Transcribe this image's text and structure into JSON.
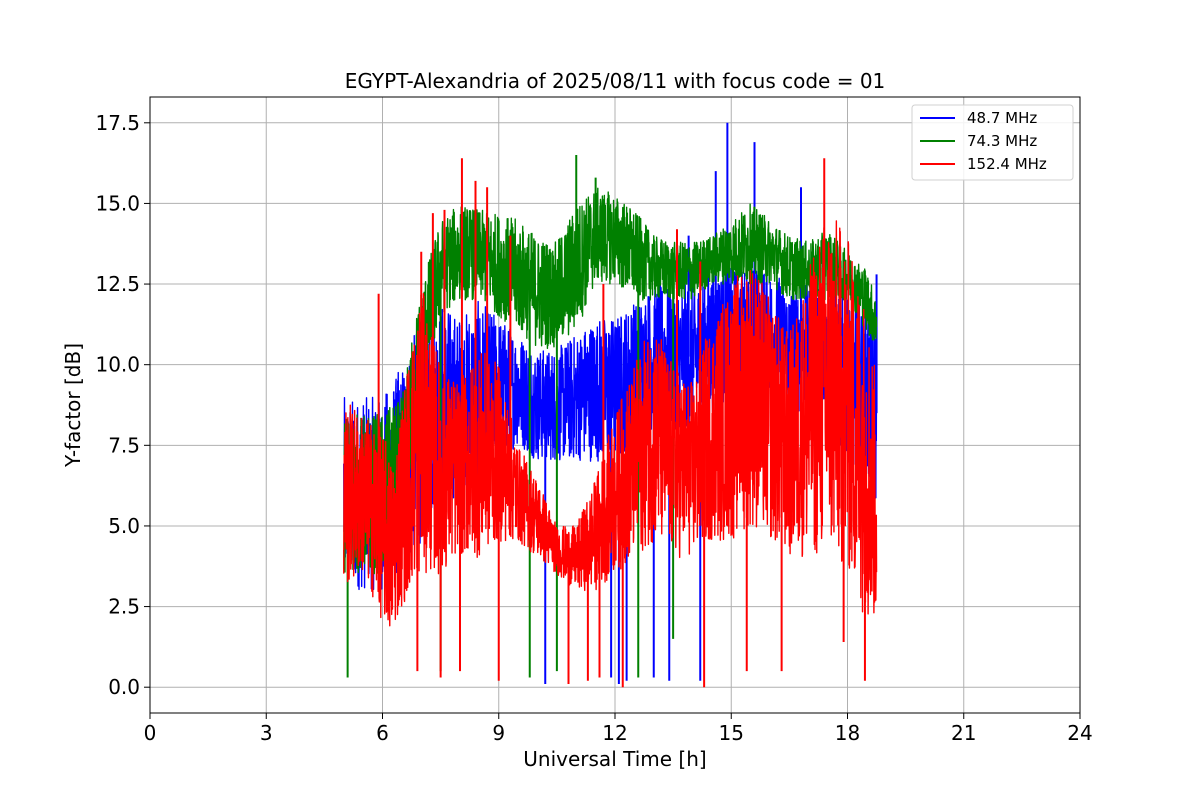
{
  "chart_data": {
    "type": "line",
    "title": "EGYPT-Alexandria of 2025/08/11 with focus code = 01",
    "xlabel": "Universal Time [h]",
    "ylabel": "Y-factor [dB]",
    "xlim": [
      0,
      24
    ],
    "ylim": [
      -0.8,
      18.3
    ],
    "xticks": [
      0,
      3,
      6,
      9,
      12,
      15,
      18,
      21,
      24
    ],
    "xtick_labels": [
      "0",
      "3",
      "6",
      "9",
      "12",
      "15",
      "18",
      "21",
      "24"
    ],
    "yticks": [
      0.0,
      2.5,
      5.0,
      7.5,
      10.0,
      12.5,
      15.0,
      17.5
    ],
    "ytick_labels": [
      "0.0",
      "2.5",
      "5.0",
      "7.5",
      "10.0",
      "12.5",
      "15.0",
      "17.5"
    ],
    "grid": true,
    "legend_position": "top-right",
    "series": [
      {
        "name": "  48.7 MHz",
        "color": "#0000ff",
        "x": [
          5.0,
          5.5,
          6.0,
          6.5,
          7.0,
          7.5,
          8.0,
          8.5,
          9.0,
          9.5,
          10.0,
          10.5,
          11.0,
          11.5,
          12.0,
          12.5,
          13.0,
          13.5,
          14.0,
          14.5,
          15.0,
          15.5,
          16.0,
          16.5,
          17.0,
          17.5,
          18.0,
          18.5,
          18.75
        ],
        "low": [
          3.0,
          3.0,
          3.0,
          3.5,
          4.5,
          5.5,
          6.0,
          6.5,
          7.0,
          7.5,
          7.0,
          7.0,
          7.0,
          7.0,
          7.0,
          7.5,
          8.0,
          8.0,
          8.0,
          8.5,
          9.0,
          9.5,
          9.0,
          8.5,
          8.5,
          8.0,
          7.0,
          6.0,
          5.5
        ],
        "high": [
          9.0,
          9.0,
          9.0,
          10.0,
          11.5,
          12.0,
          11.5,
          12.0,
          11.5,
          11.0,
          10.5,
          10.5,
          11.0,
          11.5,
          11.5,
          12.0,
          12.5,
          12.5,
          12.5,
          13.0,
          13.0,
          13.0,
          13.0,
          12.5,
          12.5,
          12.5,
          12.0,
          12.0,
          11.5
        ],
        "spikes": [
          [
            14.9,
            17.5
          ],
          [
            15.6,
            16.9
          ],
          [
            14.6,
            16.0
          ],
          [
            16.8,
            15.5
          ],
          [
            18.75,
            12.8
          ],
          [
            13.9,
            14.0
          ],
          [
            10.2,
            0.1
          ],
          [
            12.1,
            0.1
          ],
          [
            13.0,
            0.3
          ],
          [
            13.4,
            0.2
          ],
          [
            14.2,
            0.2
          ],
          [
            11.9,
            0.3
          ],
          [
            12.3,
            0.2
          ]
        ]
      },
      {
        "name": "  74.3 MHz",
        "color": "#008000",
        "x": [
          5.0,
          5.5,
          6.0,
          6.5,
          7.0,
          7.5,
          8.0,
          8.5,
          9.0,
          9.5,
          10.0,
          10.5,
          11.0,
          11.5,
          12.0,
          12.5,
          13.0,
          13.5,
          14.0,
          14.5,
          15.0,
          15.5,
          16.0,
          16.5,
          17.0,
          17.5,
          18.0,
          18.5,
          18.75
        ],
        "low": [
          3.5,
          3.5,
          3.5,
          4.5,
          8.5,
          11.5,
          12.0,
          12.0,
          11.5,
          11.0,
          10.5,
          10.5,
          11.0,
          12.5,
          12.5,
          12.0,
          12.0,
          12.0,
          12.0,
          12.5,
          12.5,
          12.5,
          12.5,
          12.0,
          12.0,
          12.0,
          12.0,
          11.0,
          10.5
        ],
        "high": [
          8.5,
          8.5,
          8.5,
          9.0,
          12.5,
          14.5,
          15.0,
          14.8,
          14.7,
          14.5,
          14.0,
          13.8,
          15.0,
          15.5,
          15.3,
          14.8,
          14.0,
          13.8,
          13.8,
          14.0,
          14.5,
          15.0,
          14.5,
          14.0,
          13.8,
          14.2,
          13.5,
          13.0,
          12.0
        ],
        "spikes": [
          [
            11.0,
            16.5
          ],
          [
            11.5,
            15.8
          ],
          [
            9.8,
            0.3
          ],
          [
            10.5,
            0.5
          ],
          [
            12.6,
            0.3
          ],
          [
            13.5,
            1.5
          ],
          [
            5.1,
            0.3
          ],
          [
            7.5,
            0.5
          ]
        ]
      },
      {
        "name": "  152.4 MHz",
        "color": "#ff0000",
        "x": [
          5.0,
          5.5,
          6.0,
          6.25,
          6.5,
          7.0,
          7.5,
          8.0,
          8.5,
          9.0,
          9.5,
          10.0,
          10.5,
          11.0,
          11.5,
          12.0,
          12.5,
          13.0,
          13.5,
          14.0,
          14.5,
          15.0,
          15.5,
          16.0,
          16.5,
          17.0,
          17.5,
          18.0,
          18.5,
          18.75
        ],
        "low": [
          3.0,
          3.5,
          2.0,
          1.5,
          2.5,
          3.5,
          3.5,
          4.0,
          4.0,
          4.5,
          4.5,
          4.0,
          3.5,
          3.0,
          3.0,
          3.5,
          4.0,
          4.5,
          4.0,
          4.0,
          4.5,
          4.5,
          5.0,
          4.5,
          4.0,
          4.0,
          4.0,
          3.5,
          2.0,
          2.0
        ],
        "high": [
          9.0,
          8.5,
          8.0,
          7.0,
          9.0,
          12.5,
          10.0,
          9.5,
          10.5,
          10.0,
          7.5,
          6.5,
          5.0,
          5.0,
          6.5,
          8.5,
          10.0,
          11.5,
          10.0,
          9.5,
          11.5,
          12.5,
          13.5,
          12.0,
          11.0,
          13.0,
          15.0,
          14.0,
          12.0,
          9.5
        ],
        "spikes": [
          [
            8.05,
            16.4
          ],
          [
            17.4,
            16.4
          ],
          [
            8.4,
            15.7
          ],
          [
            8.7,
            15.5
          ],
          [
            7.6,
            14.8
          ],
          [
            7.3,
            14.7
          ],
          [
            5.9,
            12.2
          ],
          [
            9.3,
            14.0
          ],
          [
            7.0,
            13.5
          ],
          [
            13.6,
            14.2
          ],
          [
            14.2,
            13.2
          ],
          [
            11.7,
            12.5
          ],
          [
            12.2,
            0.0
          ],
          [
            10.8,
            0.1
          ],
          [
            9.0,
            0.2
          ],
          [
            14.3,
            0.0
          ],
          [
            15.4,
            0.5
          ],
          [
            16.3,
            0.5
          ],
          [
            17.9,
            1.4
          ],
          [
            18.45,
            0.2
          ],
          [
            8.0,
            0.5
          ],
          [
            6.9,
            0.5
          ],
          [
            7.5,
            0.3
          ],
          [
            11.3,
            0.2
          ],
          [
            11.6,
            0.3
          ]
        ]
      }
    ]
  }
}
